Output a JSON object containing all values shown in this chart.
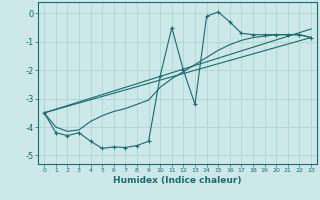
{
  "xlabel": "Humidex (Indice chaleur)",
  "bg_color": "#cce8e8",
  "grid_color": "#b0d4d4",
  "line_color": "#1a6b6b",
  "xlim": [
    -0.5,
    23.5
  ],
  "ylim": [
    -5.3,
    0.4
  ],
  "yticks": [
    0,
    -1,
    -2,
    -3,
    -4,
    -5
  ],
  "xticks": [
    0,
    1,
    2,
    3,
    4,
    5,
    6,
    7,
    8,
    9,
    10,
    11,
    12,
    13,
    14,
    15,
    16,
    17,
    18,
    19,
    20,
    21,
    22,
    23
  ],
  "curve1_x": [
    0,
    1,
    2,
    3,
    4,
    5,
    6,
    7,
    8,
    9,
    10,
    11,
    12,
    13,
    14,
    15,
    16,
    17,
    18,
    19,
    20,
    21,
    22,
    23
  ],
  "curve1_y": [
    -3.5,
    -4.2,
    -4.3,
    -4.2,
    -4.5,
    -4.75,
    -4.7,
    -4.72,
    -4.65,
    -4.5,
    -2.2,
    -0.5,
    -2.0,
    -3.2,
    -0.1,
    0.05,
    -0.3,
    -0.7,
    -0.75,
    -0.75,
    -0.75,
    -0.75,
    -0.75,
    -0.85
  ],
  "curve2_x": [
    0,
    1,
    2,
    3,
    4,
    5,
    6,
    7,
    8,
    9,
    10,
    11,
    12,
    13,
    14,
    15,
    16,
    17,
    18,
    19,
    20,
    21,
    22,
    23
  ],
  "curve2_y": [
    -3.5,
    -4.0,
    -4.15,
    -4.1,
    -3.8,
    -3.6,
    -3.45,
    -3.35,
    -3.2,
    -3.05,
    -2.6,
    -2.3,
    -2.05,
    -1.8,
    -1.55,
    -1.3,
    -1.1,
    -0.95,
    -0.85,
    -0.8,
    -0.75,
    -0.75,
    -0.75,
    -0.85
  ],
  "line1_x": [
    0,
    23
  ],
  "line1_y": [
    -3.5,
    -0.85
  ],
  "line2_x": [
    0,
    23
  ],
  "line2_y": [
    -3.5,
    -0.55
  ]
}
